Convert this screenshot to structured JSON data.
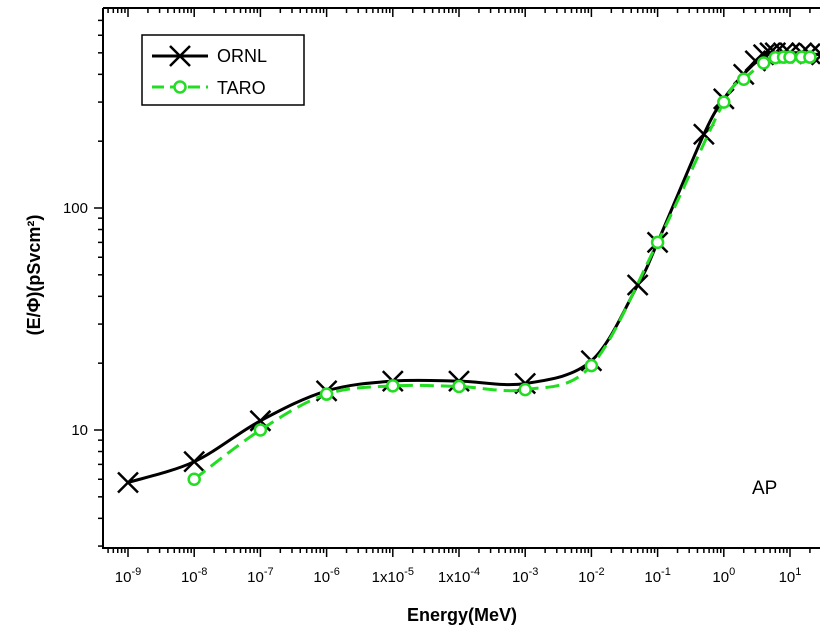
{
  "chart_data": {
    "type": "line",
    "xlabel": "Energy(MeV)",
    "ylabel": "(E/Φ)(pSvcm²)",
    "x_scale": "log",
    "y_scale": "log",
    "xlim": [
      3.5e-10,
      30
    ],
    "ylim": [
      3,
      700
    ],
    "grid": false,
    "legend_position": "top-left",
    "annotation": "AP",
    "x_tick_labels": [
      {
        "value": 1e-09,
        "base": "10",
        "exp": "-9"
      },
      {
        "value": 1e-08,
        "base": "10",
        "exp": "-8"
      },
      {
        "value": 1e-07,
        "base": "10",
        "exp": "-7"
      },
      {
        "value": 1e-06,
        "base": "10",
        "exp": "-6"
      },
      {
        "value": 1e-05,
        "base": "1x10",
        "exp": "-5"
      },
      {
        "value": 0.0001,
        "base": "1x10",
        "exp": "-4"
      },
      {
        "value": 0.001,
        "base": "10",
        "exp": "-3"
      },
      {
        "value": 0.01,
        "base": "10",
        "exp": "-2"
      },
      {
        "value": 0.1,
        "base": "10",
        "exp": "-1"
      },
      {
        "value": 1,
        "base": "10",
        "exp": "0"
      },
      {
        "value": 10,
        "base": "10",
        "exp": "1"
      }
    ],
    "y_tick_labels": [
      {
        "value": 10,
        "label": "10"
      },
      {
        "value": 100,
        "label": "100"
      }
    ],
    "series": [
      {
        "name": "ORNL",
        "color": "#000000",
        "line": "solid",
        "marker": "x",
        "points": [
          [
            1e-09,
            5.8
          ],
          [
            1e-08,
            7.2
          ],
          [
            1e-07,
            11.0
          ],
          [
            1e-06,
            15.0
          ],
          [
            1e-05,
            16.6
          ],
          [
            0.0001,
            16.6
          ],
          [
            0.001,
            16.2
          ],
          [
            0.01,
            20.5
          ],
          [
            0.05,
            45
          ],
          [
            0.1,
            70
          ],
          [
            0.5,
            215
          ],
          [
            1,
            310
          ],
          [
            2,
            400
          ],
          [
            3,
            460
          ],
          [
            4,
            490
          ],
          [
            5,
            500
          ],
          [
            6,
            500
          ],
          [
            8,
            500
          ],
          [
            10,
            500
          ],
          [
            15,
            500
          ],
          [
            20,
            495
          ],
          [
            30,
            490
          ]
        ]
      },
      {
        "name": "TARO",
        "color": "#22dd22",
        "line": "dashed",
        "marker": "o",
        "points": [
          [
            1e-08,
            6.0
          ],
          [
            1e-07,
            10.0
          ],
          [
            1e-06,
            14.5
          ],
          [
            1e-05,
            15.8
          ],
          [
            0.0001,
            15.7
          ],
          [
            0.001,
            15.2
          ],
          [
            0.01,
            19.5
          ],
          [
            0.1,
            70
          ],
          [
            1,
            300
          ],
          [
            2,
            380
          ],
          [
            4,
            450
          ],
          [
            6,
            475
          ],
          [
            8,
            478
          ],
          [
            10,
            478
          ],
          [
            15,
            478
          ],
          [
            20,
            478
          ]
        ]
      }
    ]
  }
}
